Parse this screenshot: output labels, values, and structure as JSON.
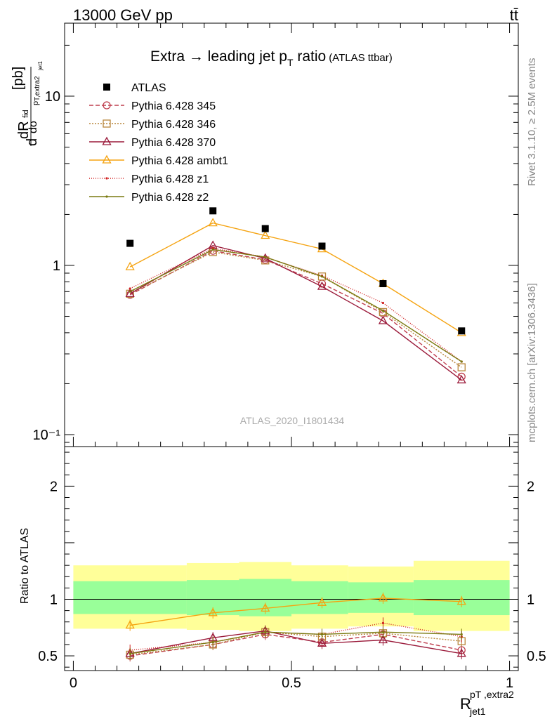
{
  "header": {
    "energy_label": "13000 GeV pp",
    "process_label": "tt̄",
    "title_main": "Extra → leading jet p",
    "title_sub": "T",
    "title_suffix": " ratio",
    "title_small": "(ATLAS ttbar)",
    "side_label_top": "Rivet 3.1.10, ≥ 2.5M events",
    "side_label_bottom": "mcplots.cern.ch [arXiv:1306.3436]",
    "watermark": "ATLAS_2020_I1801434"
  },
  "axes": {
    "ylabel_main": "dσ^fid / dR [pb]",
    "ylabel_ratio": "Ratio to ATLAS",
    "xlabel": "R_jet1^pT,extra2",
    "main_ylim": [
      0.085,
      27
    ],
    "main_yscale": "log",
    "main_ytick_labels": [
      {
        "v": 0.1,
        "t": "10⁻¹"
      },
      {
        "v": 1,
        "t": "1"
      },
      {
        "v": 10,
        "t": "10"
      }
    ],
    "ratio_ylim": [
      0.37,
      2.35
    ],
    "ratio_ytick_labels": [
      "0.5",
      "1",
      "2"
    ],
    "xlim": [
      -0.02,
      1.02
    ],
    "xtick_labels": [
      "0",
      "0.5",
      "1"
    ]
  },
  "chart_data": {
    "type": "scatter",
    "x": [
      0.13,
      0.32,
      0.44,
      0.57,
      0.71,
      0.89
    ],
    "x_edges": [
      0,
      0.26,
      0.38,
      0.5,
      0.63,
      0.78,
      1.0
    ],
    "data": {
      "name": "ATLAS",
      "values": [
        1.35,
        2.1,
        1.65,
        1.3,
        0.78,
        0.41
      ],
      "band_1sigma": [
        [
          0.87,
          1.16
        ],
        [
          0.86,
          1.17
        ],
        [
          0.85,
          1.18
        ],
        [
          0.87,
          1.16
        ],
        [
          0.88,
          1.15
        ],
        [
          0.86,
          1.17
        ]
      ],
      "band_2sigma": [
        [
          0.74,
          1.3
        ],
        [
          0.73,
          1.32
        ],
        [
          0.72,
          1.33
        ],
        [
          0.74,
          1.3
        ],
        [
          0.76,
          1.29
        ],
        [
          0.72,
          1.34
        ]
      ]
    },
    "series": [
      {
        "name": "Pythia 6.428 345",
        "color": "#bf3f4f",
        "marker": "circle",
        "dash": "6,3",
        "values": [
          0.67,
          1.22,
          1.08,
          0.78,
          0.52,
          0.22
        ],
        "ratio": [
          0.5,
          0.6,
          0.69,
          0.62,
          0.69,
          0.55
        ]
      },
      {
        "name": "Pythia 6.428 346",
        "color": "#b8863b",
        "marker": "square",
        "dash": "2,2",
        "values": [
          0.68,
          1.2,
          1.07,
          0.86,
          0.53,
          0.25
        ],
        "ratio": [
          0.51,
          0.6,
          0.71,
          0.67,
          0.7,
          0.63
        ]
      },
      {
        "name": "Pythia 6.428 370",
        "color": "#9b1b3b",
        "marker": "triangle",
        "dash": "",
        "values": [
          0.68,
          1.31,
          1.1,
          0.75,
          0.47,
          0.21
        ],
        "ratio": [
          0.52,
          0.66,
          0.72,
          0.61,
          0.64,
          0.52
        ]
      },
      {
        "name": "Pythia 6.428 ambt1",
        "color": "#f5a310",
        "marker": "triangle",
        "dash": "",
        "values": [
          0.98,
          1.78,
          1.5,
          1.25,
          0.78,
          0.4
        ],
        "ratio": [
          0.77,
          0.88,
          0.92,
          0.97,
          1.01,
          0.98
        ]
      },
      {
        "name": "Pythia 6.428 z1",
        "color": "#d01e1e",
        "marker": "dot",
        "dash": "1,2",
        "values": [
          0.73,
          1.26,
          1.12,
          0.87,
          0.6,
          0.27
        ],
        "ratio": [
          0.55,
          0.62,
          0.71,
          0.69,
          0.79,
          0.67
        ]
      },
      {
        "name": "Pythia 6.428 z2",
        "color": "#7a7a10",
        "marker": "dot",
        "dash": "",
        "values": [
          0.7,
          1.24,
          1.12,
          0.86,
          0.54,
          0.27
        ],
        "ratio": [
          0.52,
          0.62,
          0.71,
          0.69,
          0.71,
          0.69
        ]
      }
    ]
  }
}
